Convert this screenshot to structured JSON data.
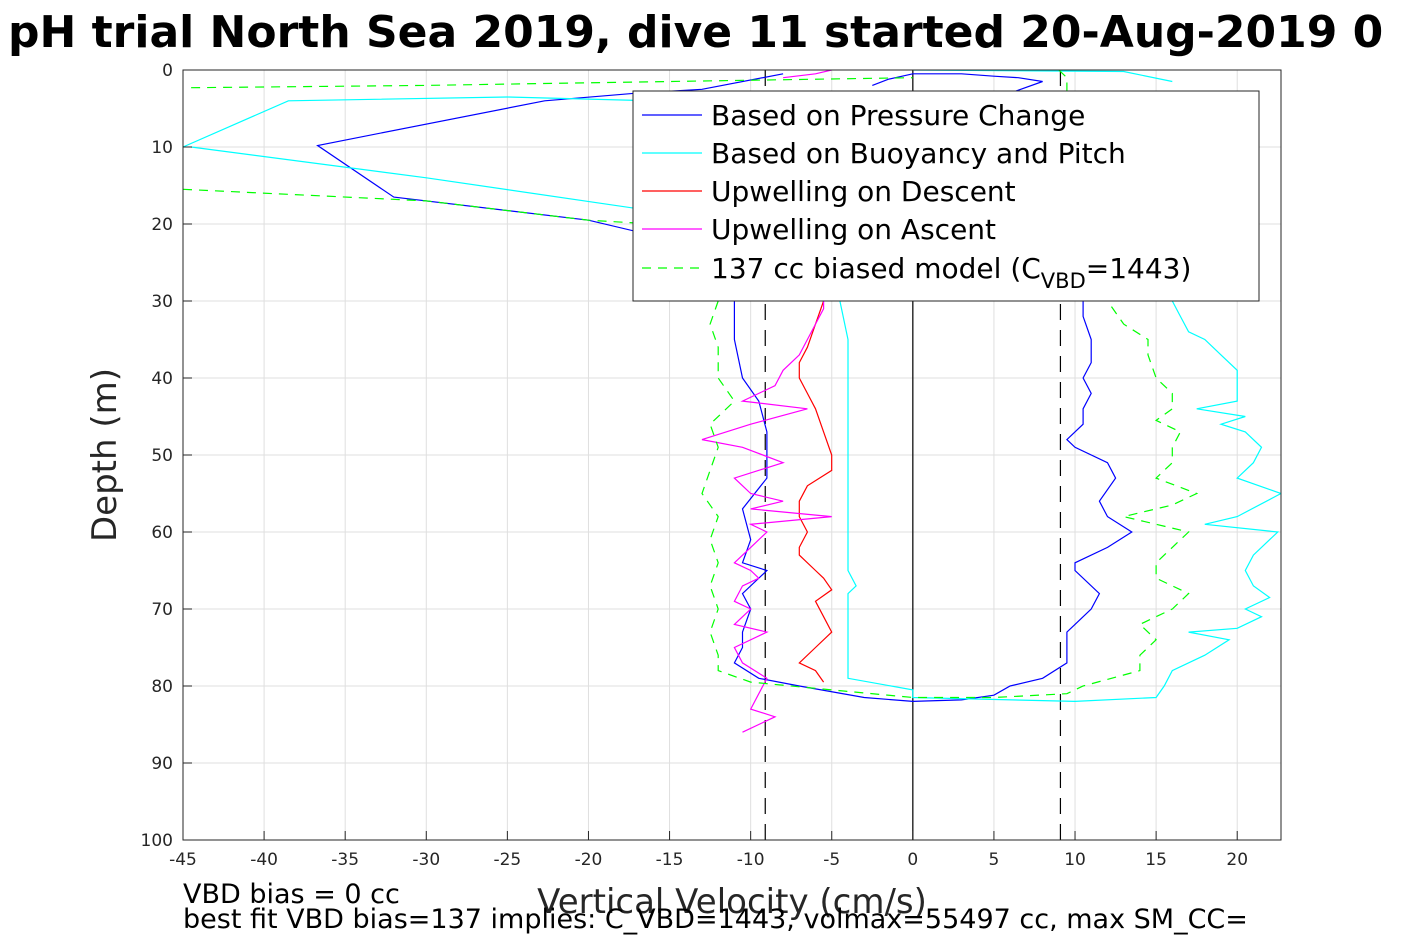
{
  "title": "pH trial North Sea 2019, dive 11 started 20-Aug-2019 0",
  "chart_data": {
    "type": "line",
    "xlabel": "Vertical Velocity (cm/s)",
    "ylabel": "Depth (m)",
    "xlim": [
      -45,
      22.7
    ],
    "ylim": [
      0,
      100
    ],
    "y_reversed": true,
    "grid": true,
    "legend_position": "top-right",
    "x_ticks": [
      -45,
      -40,
      -35,
      -30,
      -25,
      -20,
      -15,
      -10,
      -5,
      0,
      5,
      10,
      15,
      20
    ],
    "y_ticks": [
      0,
      10,
      20,
      30,
      40,
      50,
      60,
      70,
      80,
      90,
      100
    ],
    "reference_lines": [
      {
        "x": 0,
        "style": "solid",
        "color": "#000000"
      },
      {
        "x": -9.1,
        "style": "dashed",
        "color": "#000000"
      },
      {
        "x": 9.1,
        "style": "dashed",
        "color": "#000000"
      }
    ],
    "series": [
      {
        "name": "Based on Pressure Change",
        "color": "#0000ff",
        "dash": "",
        "segments": [
          [
            [
              -11,
              30
            ],
            [
              -11,
              35
            ],
            [
              -10.5,
              40
            ],
            [
              -9.5,
              43
            ],
            [
              -9,
              47
            ],
            [
              -9,
              50
            ],
            [
              -9,
              53
            ],
            [
              -10.5,
              57
            ],
            [
              -10,
              61
            ],
            [
              -10.5,
              64
            ],
            [
              -9,
              65
            ],
            [
              -10.5,
              68
            ],
            [
              -10,
              70
            ],
            [
              -10.5,
              73
            ],
            [
              -10.5,
              75
            ],
            [
              -11,
              77
            ],
            [
              -9.5,
              79
            ],
            [
              -7,
              80
            ],
            [
              -3,
              81.5
            ],
            [
              0,
              82
            ],
            [
              3,
              81.8
            ],
            [
              5,
              81.2
            ],
            [
              6,
              80
            ],
            [
              8,
              79
            ],
            [
              9.5,
              77
            ],
            [
              9.5,
              75
            ],
            [
              9.5,
              73
            ],
            [
              10,
              72
            ],
            [
              11,
              70
            ],
            [
              11.5,
              68
            ],
            [
              10,
              65
            ],
            [
              10,
              64
            ],
            [
              12,
              62
            ],
            [
              13.5,
              60
            ],
            [
              12,
              58
            ],
            [
              11.5,
              56
            ],
            [
              12.5,
              53
            ],
            [
              12,
              51
            ],
            [
              10,
              49
            ],
            [
              9.5,
              48
            ],
            [
              10.5,
              46
            ],
            [
              10.5,
              44
            ],
            [
              11,
              42
            ],
            [
              10.5,
              40
            ],
            [
              11,
              38
            ],
            [
              11,
              35
            ],
            [
              10.5,
              32
            ],
            [
              10.5,
              30
            ]
          ],
          [
            [
              -8,
              0.5
            ],
            [
              -13,
              2.5
            ],
            [
              -17,
              3
            ],
            [
              -22.7,
              4
            ],
            [
              -36.7,
              9.8
            ],
            [
              -32,
              16.5
            ],
            [
              -20,
              19.5
            ],
            [
              -15,
              22
            ],
            [
              -12,
              24
            ],
            [
              -11,
              26
            ]
          ],
          [
            [
              -2.5,
              2
            ],
            [
              -1.5,
              1.2
            ],
            [
              0,
              0.5
            ],
            [
              3,
              0.5
            ],
            [
              5,
              0.8
            ],
            [
              6.5,
              1
            ],
            [
              8,
              1.5
            ],
            [
              6,
              3
            ]
          ]
        ]
      },
      {
        "name": "Based on Buoyancy and Pitch",
        "color": "#00ffff",
        "dash": "",
        "segments": [
          [
            [
              -4.5,
              30
            ],
            [
              -4,
              35
            ],
            [
              -4,
              40
            ],
            [
              -4,
              45
            ],
            [
              -4,
              50
            ],
            [
              -4,
              55
            ],
            [
              -4,
              60
            ],
            [
              -4,
              65
            ],
            [
              -3.5,
              67
            ],
            [
              -4,
              68
            ],
            [
              -4,
              70
            ],
            [
              -4,
              75
            ],
            [
              -4,
              79
            ],
            [
              0,
              80.5
            ],
            [
              0,
              81.5
            ],
            [
              10,
              82
            ],
            [
              15,
              81.5
            ],
            [
              15.5,
              80
            ],
            [
              16,
              78
            ],
            [
              18,
              76
            ],
            [
              19.5,
              74
            ],
            [
              17,
              73
            ],
            [
              20,
              72.5
            ],
            [
              21.5,
              71
            ],
            [
              20.5,
              70
            ],
            [
              22,
              68.5
            ],
            [
              21,
              67
            ],
            [
              20.5,
              65
            ],
            [
              21,
              63
            ],
            [
              22,
              61
            ],
            [
              22.5,
              60
            ],
            [
              18,
              59
            ],
            [
              20,
              58
            ],
            [
              22.7,
              55
            ],
            [
              20,
              53
            ],
            [
              21,
              51
            ],
            [
              21.5,
              49
            ],
            [
              20.5,
              47
            ],
            [
              19,
              46
            ],
            [
              20.5,
              45
            ],
            [
              17.5,
              44
            ],
            [
              20,
              43
            ],
            [
              20,
              41
            ],
            [
              20,
              39
            ],
            [
              19,
              37
            ],
            [
              18,
              35
            ],
            [
              17,
              34
            ],
            [
              16.5,
              32
            ],
            [
              16,
              30
            ]
          ],
          [
            [
              -45,
              10
            ],
            [
              -38.5,
              4
            ],
            [
              -25,
              3.5
            ],
            [
              -16,
              4
            ],
            [
              -12,
              6
            ]
          ],
          [
            [
              -44.5,
              10
            ],
            [
              -30,
              14
            ],
            [
              -17,
              18
            ],
            [
              -16,
              20
            ]
          ],
          [
            [
              0,
              0
            ],
            [
              13,
              0.2
            ],
            [
              16,
              1.5
            ]
          ]
        ]
      },
      {
        "name": "Upwelling on Descent",
        "color": "#ff0000",
        "dash": "",
        "segments": [
          [
            [
              -5.5,
              30
            ],
            [
              -6,
              33
            ],
            [
              -6.5,
              36
            ],
            [
              -7,
              38
            ],
            [
              -7,
              40
            ],
            [
              -6.5,
              42
            ],
            [
              -6,
              44
            ],
            [
              -5.5,
              47
            ],
            [
              -5,
              50
            ],
            [
              -5,
              52
            ],
            [
              -6.5,
              54
            ],
            [
              -7,
              56
            ],
            [
              -7,
              58
            ],
            [
              -6.5,
              60
            ],
            [
              -7,
              62
            ],
            [
              -7,
              63
            ],
            [
              -6,
              65
            ],
            [
              -5.5,
              66
            ],
            [
              -5,
              67.5
            ],
            [
              -6,
              69
            ],
            [
              -5.5,
              71
            ],
            [
              -5,
              73
            ],
            [
              -6,
              75
            ],
            [
              -7,
              77
            ],
            [
              -6,
              78
            ],
            [
              -5.5,
              79.5
            ]
          ]
        ]
      },
      {
        "name": "Upwelling on Ascent",
        "color": "#ff00ff",
        "dash": "",
        "segments": [
          [
            [
              -10.5,
              86
            ],
            [
              -8.5,
              84
            ],
            [
              -10,
              83
            ],
            [
              -9,
              79
            ],
            [
              -10.5,
              77
            ],
            [
              -11,
              75
            ],
            [
              -9,
              73
            ],
            [
              -11,
              72
            ],
            [
              -10,
              70
            ],
            [
              -11,
              69
            ],
            [
              -10.5,
              67
            ],
            [
              -9.5,
              66
            ],
            [
              -10,
              65
            ],
            [
              -11,
              64
            ],
            [
              -10,
              62
            ],
            [
              -9,
              60
            ],
            [
              -10,
              59
            ],
            [
              -5,
              58
            ],
            [
              -10,
              57
            ],
            [
              -8,
              56
            ],
            [
              -10,
              55
            ],
            [
              -11,
              53
            ],
            [
              -8,
              51
            ],
            [
              -10.5,
              49
            ],
            [
              -13,
              48
            ],
            [
              -10,
              46
            ],
            [
              -6.5,
              44
            ],
            [
              -10.5,
              43
            ],
            [
              -8.5,
              41
            ],
            [
              -8,
              39
            ],
            [
              -7,
              37
            ],
            [
              -6.5,
              35
            ],
            [
              -6,
              33
            ],
            [
              -5.5,
              31
            ],
            [
              -5.5,
              30
            ]
          ],
          [
            [
              -8,
              1
            ],
            [
              -6,
              0.5
            ],
            [
              -5,
              0
            ]
          ]
        ]
      },
      {
        "name": "137 cc biased model (C_VBD=1443)",
        "color": "#00ff00",
        "dash": "9,7",
        "segments": [
          [
            [
              -12,
              30
            ],
            [
              -12.5,
              33
            ],
            [
              -12,
              36
            ],
            [
              -12,
              40
            ],
            [
              -11,
              43
            ],
            [
              -12.5,
              46
            ],
            [
              -12,
              49
            ],
            [
              -12.5,
              52
            ],
            [
              -13,
              55
            ],
            [
              -12,
              58
            ],
            [
              -12.5,
              61
            ],
            [
              -12,
              64
            ],
            [
              -12.5,
              67
            ],
            [
              -12,
              70
            ],
            [
              -12.5,
              73
            ],
            [
              -12,
              76
            ],
            [
              -12,
              78
            ],
            [
              -10,
              79.5
            ],
            [
              -5,
              80.5
            ],
            [
              0,
              81.5
            ],
            [
              5,
              81.5
            ],
            [
              9.5,
              81
            ],
            [
              10.5,
              80
            ],
            [
              14,
              78
            ],
            [
              14,
              76
            ],
            [
              15,
              74
            ],
            [
              14,
              72
            ],
            [
              16,
              70
            ],
            [
              17,
              68
            ],
            [
              15,
              66
            ],
            [
              15,
              64
            ],
            [
              16,
              62
            ],
            [
              17,
              60
            ],
            [
              13,
              58
            ],
            [
              16,
              56.5
            ],
            [
              17.5,
              55
            ],
            [
              15,
              53
            ],
            [
              16,
              51
            ],
            [
              16,
              49
            ],
            [
              16.5,
              47
            ],
            [
              15,
              45.5
            ],
            [
              16,
              44
            ],
            [
              16,
              42
            ],
            [
              15,
              40
            ],
            [
              14.5,
              37
            ],
            [
              14.5,
              35
            ],
            [
              13,
              33
            ],
            [
              12,
              30
            ]
          ],
          [
            [
              -44.5,
              2.3
            ],
            [
              -30,
              2
            ],
            [
              -15,
              1.5
            ],
            [
              0,
              1
            ]
          ],
          [
            [
              -45,
              15.5
            ],
            [
              -30,
              17
            ],
            [
              -20,
              19.5
            ],
            [
              -16,
              20
            ]
          ],
          [
            [
              9,
              0
            ],
            [
              9.5,
              1
            ],
            [
              9.5,
              3
            ]
          ]
        ]
      }
    ]
  },
  "legend_entries": [
    {
      "label": "Based on Pressure Change",
      "color": "#0000ff",
      "dash": ""
    },
    {
      "label": "Based on Buoyancy and Pitch",
      "color": "#00ffff",
      "dash": ""
    },
    {
      "label": "Upwelling on Descent",
      "color": "#ff0000",
      "dash": ""
    },
    {
      "label": "Upwelling on Ascent",
      "color": "#ff00ff",
      "dash": ""
    }
  ],
  "legend_model": {
    "prefix": "137 cc biased model (C",
    "sub": "VBD",
    "suffix": "=1443)",
    "color": "#00ff00",
    "dash": "9,7"
  },
  "footer": {
    "line1": "VBD bias = 0 cc",
    "line2": "best fit VBD bias=137 implies: C_VBD=1443, volmax=55497 cc, max SM_CC="
  }
}
